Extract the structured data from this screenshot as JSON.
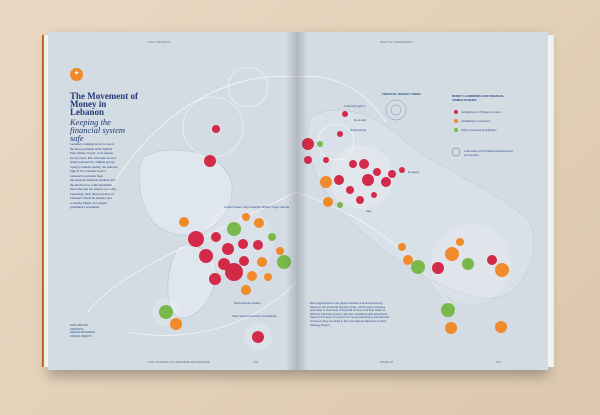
{
  "header": {
    "left_running": "THE PROJECT",
    "right_running": "WHAT'S HAPPENING"
  },
  "article": {
    "title": "The Movement of Money in Lebanon",
    "subtitle": "Keeping the financial system safe",
    "body": "Lebanon's banking sector is one of the most profitable in the Middle East; thanks, in part, to its famous secrecy laws. But with bank secrecy being exploited by criminal groups trying to launder money, the risks are high. If US concerns lead to Lebanon's exclusion from international financial markets, then the shockwaves could destabilize more than just the nation's economy. Surprising, then, that protection of Lebanon's financial industry and economy, hinges on a simple gentleman's agreement.",
    "credits": [
      "DATA WRITING",
      "GRAPHICS",
      "DESIGN RESEARCH",
      "DESIGN CREDITS"
    ]
  },
  "map_labels": {
    "united_states": "United States Virgin Islands",
    "british_virgin": "British Virgin Islands",
    "netherlands_antilles": "Netherlands Antilles",
    "saint_vincent": "Saint Vincent and the Grenadines",
    "uk": "United Kingdom",
    "denmark": "Denmark",
    "netherlands": "Netherlands",
    "italy": "Italy",
    "hungary": "Hungary"
  },
  "legend": {
    "secrecy_title": "FINANCIAL SECRECY INDEX",
    "laundering_title": "MONEY LAUNDERING AND FINANCIAL CRIMES RANKING",
    "items": [
      "Jurisdictions of Primary Concern",
      "Jurisdictions of Concern",
      "Other monitored jurisdictions"
    ],
    "note": "Total Value of the Market Attractiveness of Countries"
  },
  "footnote": "Bars aggregated on the global markets of financial secrecy based on the Financial Secrecy Index, which ranks countries according to their level of financial secrecy and their share of offshore financial services. We then classified each jurisdiction based on its level of concern for money laundering and financial crimes as they are listed in the International Narcotics Control Strategy Report.",
  "folios": {
    "left": "THE JOURNAL OF LEBANESE ECONOMICS",
    "left_num": "106",
    "right_issue": "ISSUE 07",
    "right_num": "107"
  },
  "colors": {
    "primary_concern": "#d42a4a",
    "concern": "#f08a2b",
    "monitored": "#79b84a",
    "page": "#d3dbe3",
    "ink": "#213b78"
  }
}
